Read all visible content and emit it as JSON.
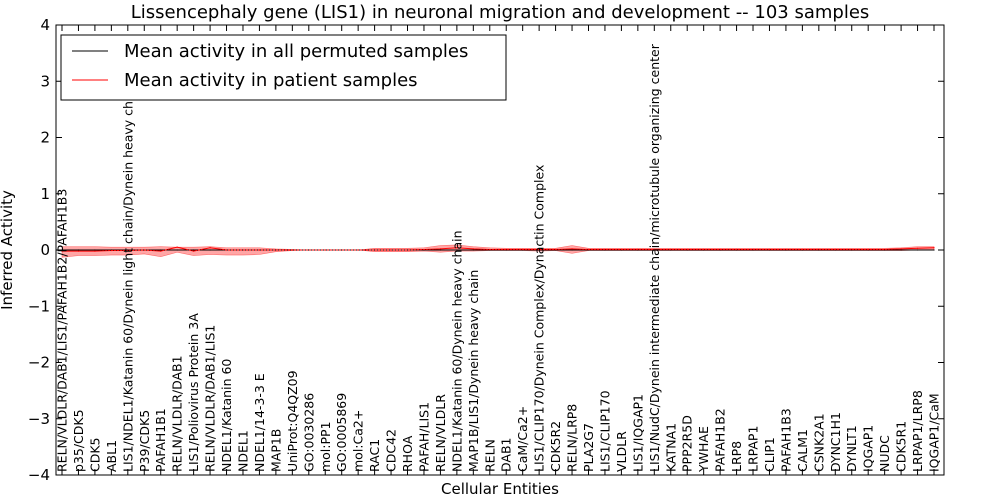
{
  "chart_data": {
    "type": "line",
    "title": "Lissencephaly gene (LIS1) in neuronal migration and development -- 103 samples",
    "xlabel": "Cellular Entities",
    "ylabel": "Inferred Activity",
    "ylim": [
      -4,
      4
    ],
    "yticks": [
      -4,
      -3,
      -2,
      -1,
      0,
      1,
      2,
      3,
      4
    ],
    "grid": false,
    "legend_position": "top-left",
    "colors": {
      "permuted": "#000000",
      "patient": "#ff0000",
      "band": "#ff0000",
      "band_permuted": "#9999dd"
    },
    "categories": [
      "RELN/VLDLR/DAB1/LIS1/PAFAH1B2/PAFAH1B3",
      "p35/CDK5",
      "CDK5",
      "ABL1",
      "LIS1/NDEL1/Katanin 60/Dynein light chain/Dynein heavy chain",
      "P39/CDK5",
      "PAFAH1B1",
      "RELN/VLDLR/DAB1",
      "LIS1/Poliovirus Protein 3A",
      "RELN/VLDLR/DAB1/LIS1",
      "NDEL1/Katanin 60",
      "NDEL1",
      "NDEL1/14-3-3 E",
      "MAP1B",
      "UniProt:Q4QZ09",
      "GO:0030286",
      "mol:PP1",
      "GO:0005869",
      "mol:Ca2+",
      "RAC1",
      "CDC42",
      "RHOA",
      "PAFAH/LIS1",
      "RELN/VLDLR",
      "NDEL1/Katanin 60/Dynein heavy chain",
      "MAP1B/LIS1/Dynein heavy chain",
      "RELN",
      "DAB1",
      "CaM/Ca2+",
      "LIS1/CLIP170/Dynein Complex/Dynactin Complex",
      "CDK5R2",
      "RELN/LRP8",
      "PLA2G7",
      "LIS1/CLIP170",
      "VLDLR",
      "LIS1/IQGAP1",
      "LIS1/NudC/Dynein intermediate chain/microtubule organizing center",
      "KATNA1",
      "PPP2R5D",
      "YWHAE",
      "PAFAH1B2",
      "LRP8",
      "LRPAP1",
      "CLIP1",
      "PAFAH1B3",
      "CALM1",
      "CSNK2A1",
      "DYNC1H1",
      "DYNLT1",
      "IQGAP1",
      "NUDC",
      "CDK5R1",
      "LRPAP1/LRP8",
      "IQGAP1/CaM"
    ],
    "series": [
      {
        "name": "Mean activity in all permuted samples",
        "color": "#000000",
        "values": [
          0,
          0,
          0,
          0,
          0,
          0,
          0,
          0,
          0,
          0,
          0,
          0,
          0,
          0,
          0,
          0,
          0,
          0,
          0,
          0,
          0,
          0,
          0,
          0,
          0,
          0,
          0,
          0,
          0,
          0,
          0,
          0,
          0,
          0,
          0,
          0,
          0,
          0,
          0,
          0,
          0,
          0,
          0,
          0,
          0,
          0,
          0,
          0,
          0,
          0,
          0,
          0,
          0,
          0
        ]
      },
      {
        "name": "Mean activity in patient samples",
        "color": "#ff0000",
        "values": [
          -0.02,
          -0.02,
          -0.02,
          -0.01,
          -0.01,
          0.0,
          -0.02,
          0.05,
          -0.02,
          0.04,
          0.0,
          0.0,
          0.0,
          0.0,
          0.0,
          0.0,
          0.0,
          0.0,
          0.0,
          0.0,
          0.0,
          0.0,
          0.01,
          0.02,
          0.04,
          0.02,
          0.01,
          0.01,
          0.01,
          0.01,
          0.01,
          0.02,
          0.01,
          0.01,
          0.01,
          0.01,
          0.01,
          0.01,
          0.01,
          0.01,
          0.01,
          0.01,
          0.01,
          0.01,
          0.01,
          0.01,
          0.01,
          0.01,
          0.01,
          0.01,
          0.01,
          0.02,
          0.03,
          0.04
        ],
        "band_upper": [
          0.06,
          0.06,
          0.06,
          0.05,
          0.05,
          0.05,
          0.06,
          0.05,
          0.05,
          0.06,
          0.04,
          0.04,
          0.04,
          0.02,
          0.01,
          0.0,
          0.0,
          0.0,
          0.0,
          0.03,
          0.03,
          0.03,
          0.04,
          0.08,
          0.09,
          0.06,
          0.04,
          0.03,
          0.03,
          0.03,
          0.03,
          0.08,
          0.03,
          0.03,
          0.03,
          0.03,
          0.03,
          0.03,
          0.03,
          0.03,
          0.03,
          0.03,
          0.03,
          0.03,
          0.03,
          0.03,
          0.03,
          0.03,
          0.03,
          0.03,
          0.03,
          0.04,
          0.06,
          0.06
        ],
        "band_lower": [
          -0.13,
          -0.1,
          -0.1,
          -0.09,
          -0.09,
          -0.07,
          -0.12,
          -0.04,
          -0.1,
          -0.08,
          -0.09,
          -0.09,
          -0.08,
          -0.03,
          -0.01,
          0.0,
          0.0,
          0.0,
          0.0,
          -0.03,
          -0.03,
          -0.03,
          -0.02,
          -0.04,
          -0.02,
          -0.02,
          -0.01,
          -0.01,
          -0.01,
          -0.02,
          -0.01,
          -0.06,
          -0.01,
          -0.01,
          -0.01,
          -0.01,
          -0.01,
          -0.01,
          -0.01,
          -0.01,
          -0.01,
          -0.01,
          -0.01,
          -0.01,
          -0.01,
          -0.01,
          -0.01,
          -0.01,
          -0.01,
          -0.01,
          -0.01,
          -0.01,
          0.0,
          0.0
        ]
      }
    ]
  }
}
